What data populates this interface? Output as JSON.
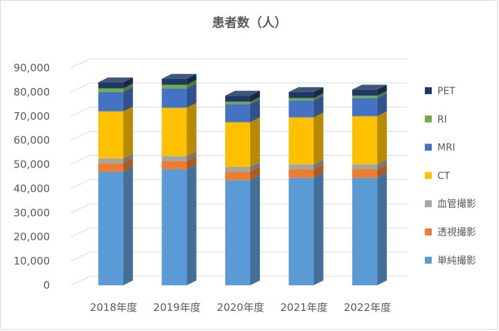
{
  "chart_data": {
    "type": "bar",
    "stacked": true,
    "title": "患者数（人）",
    "categories": [
      "2018年度",
      "2019年度",
      "2020年度",
      "2021年度",
      "2022年度"
    ],
    "ylim": [
      0,
      90000
    ],
    "yticks": [
      "0",
      "10,000",
      "20,000",
      "30,000",
      "40,000",
      "50,000",
      "60,000",
      "70,000",
      "80,000",
      "90,000"
    ],
    "grid": true,
    "legend_position": "right",
    "series": [
      {
        "name": "単純撮影",
        "color": "#5b9bd5",
        "values": [
          47000,
          48000,
          43500,
          44500,
          44500
        ]
      },
      {
        "name": "透視撮影",
        "color": "#ed7d31",
        "values": [
          3500,
          3500,
          3500,
          3500,
          3500
        ]
      },
      {
        "name": "血管撮影",
        "color": "#a5a5a5",
        "values": [
          2000,
          2000,
          2000,
          2000,
          2000
        ]
      },
      {
        "name": "CT",
        "color": "#ffc000",
        "values": [
          19500,
          20000,
          18500,
          19500,
          20000
        ]
      },
      {
        "name": "MRI",
        "color": "#4472c4",
        "values": [
          8000,
          8000,
          7500,
          7000,
          7500
        ]
      },
      {
        "name": "RI",
        "color": "#70ad47",
        "values": [
          1500,
          1500,
          1000,
          1000,
          1000
        ]
      },
      {
        "name": "PET",
        "color": "#203864",
        "values": [
          2500,
          2500,
          2500,
          2500,
          2500
        ]
      }
    ],
    "legend_order": [
      "PET",
      "RI",
      "MRI",
      "CT",
      "血管撮影",
      "透視撮影",
      "単純撮影"
    ]
  }
}
